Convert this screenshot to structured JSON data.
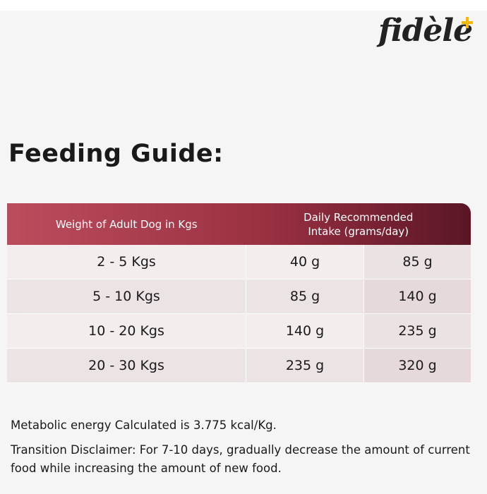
{
  "header": {
    "logo": "fidèle"
  },
  "title": "Feeding Guide:",
  "table": {
    "columns": [
      "Weight of Adult Dog in Kgs",
      "Daily Recommended Intake (grams/day)"
    ],
    "rows": [
      [
        "2 - 5 Kgs",
        "40 g",
        "85 g"
      ],
      [
        "5 - 10 Kgs",
        "85 g",
        "140 g"
      ],
      [
        "10 - 20 Kgs",
        "140 g",
        "235 g"
      ],
      [
        "20 - 30 Kgs",
        "235 g",
        "320 g"
      ]
    ]
  },
  "notes": [
    "Metabolic energy Calculated is 3.775 kcal/Kg.",
    "Transition Disclaimer: For 7-10 days, gradually decrease the amount of current food while increasing the amount of new food."
  ]
}
